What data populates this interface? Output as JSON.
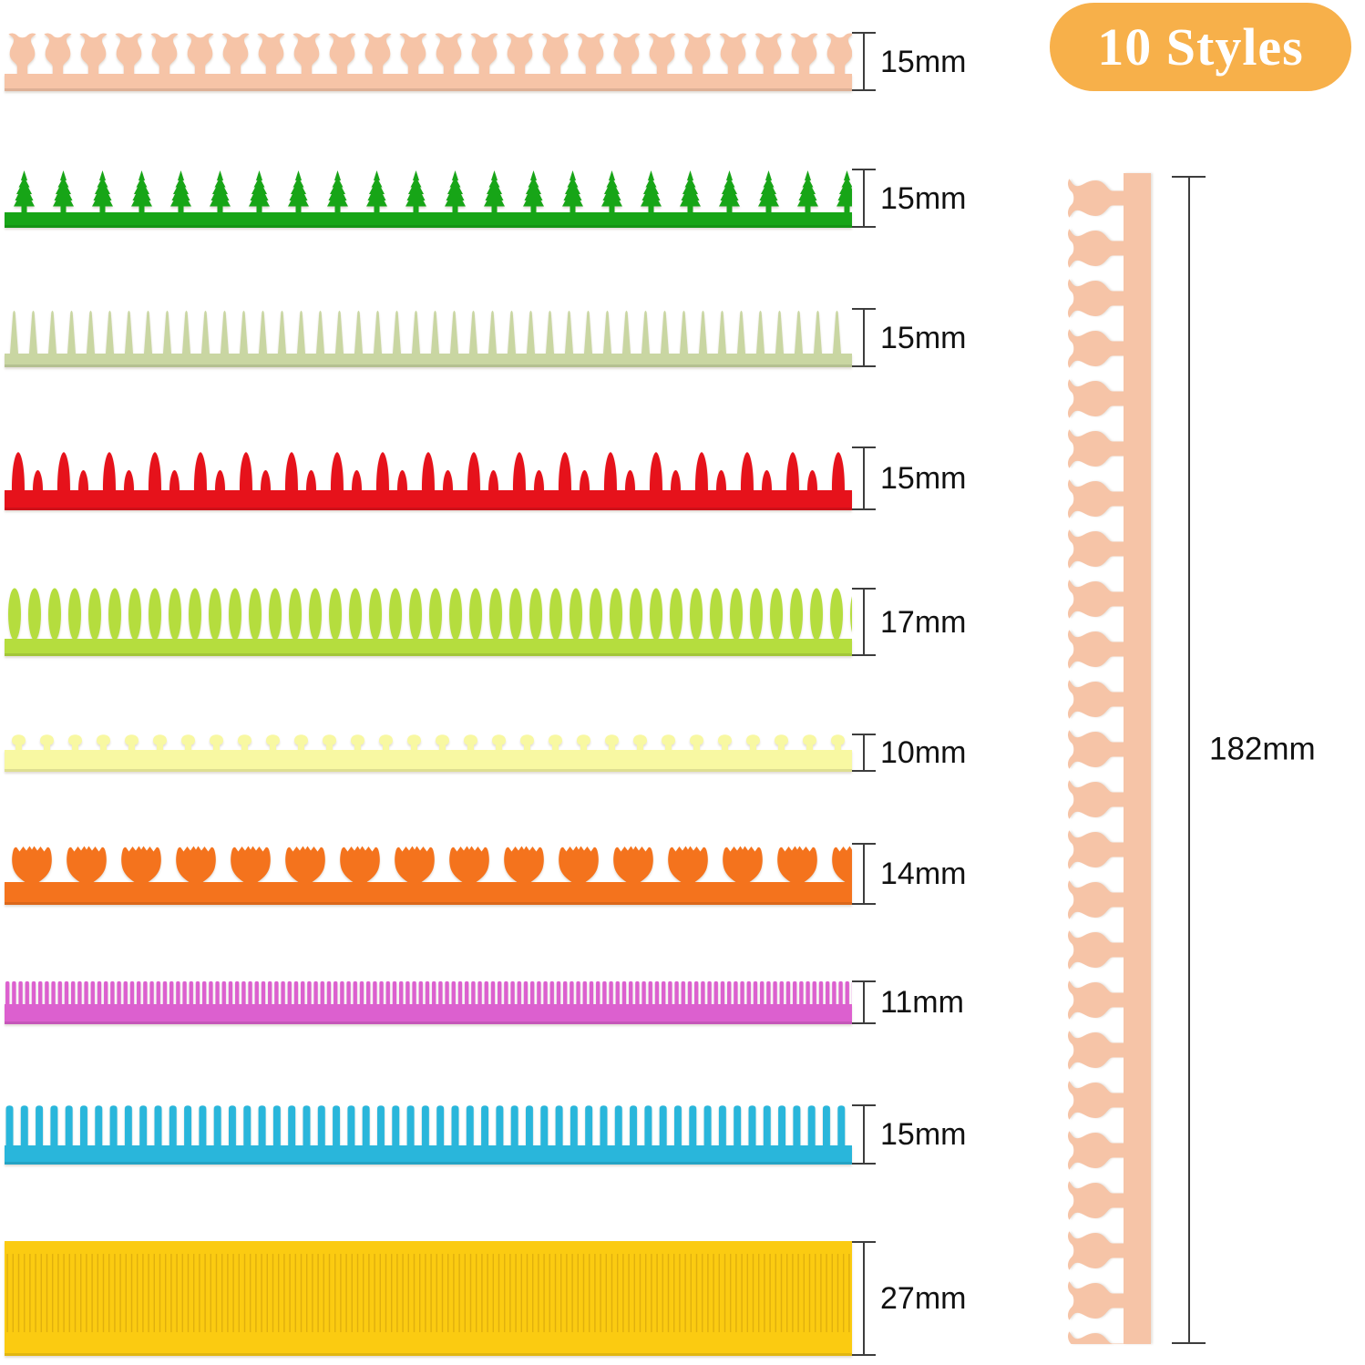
{
  "badge": {
    "label": "10 Styles",
    "bg_color": "#F7B04A",
    "text_color": "#FFFFFF"
  },
  "strips": [
    {
      "name": "tulip-border",
      "style": "tulip-buds",
      "color": "#F6C4A7",
      "height_label": "15mm"
    },
    {
      "name": "pine-tree-border",
      "style": "pine-trees",
      "color": "#17A517",
      "height_label": "15mm"
    },
    {
      "name": "grass-border",
      "style": "grass-spikes",
      "color": "#C9D6A2",
      "height_label": "15mm"
    },
    {
      "name": "flame-border",
      "style": "flame-spikes",
      "color": "#E6121B",
      "height_label": "15mm"
    },
    {
      "name": "petal-border",
      "style": "oval-petals",
      "color": "#B5DD3E",
      "height_label": "17mm"
    },
    {
      "name": "bump-border",
      "style": "round-bumps",
      "color": "#F8F8A2",
      "height_label": "10mm"
    },
    {
      "name": "tulip-flower-border",
      "style": "tulip-flowers",
      "color": "#F4731D",
      "height_label": "14mm"
    },
    {
      "name": "fine-fringe-border",
      "style": "fine-fringe",
      "color": "#DC60CF",
      "height_label": "11mm"
    },
    {
      "name": "fringe-border",
      "style": "fringe",
      "color": "#29B6DB",
      "height_label": "15mm"
    },
    {
      "name": "pleated-border",
      "style": "pleated",
      "color": "#FBCB11",
      "texture_color": "#E0AF0E",
      "height_label": "27mm"
    }
  ],
  "vertical_strip": {
    "name": "tulip-border-vertical",
    "style": "tulip-buds",
    "color": "#F6C4A7",
    "length_label": "182mm"
  },
  "measure": {
    "line_color": "#3D3D3D",
    "text_color": "#111111"
  }
}
